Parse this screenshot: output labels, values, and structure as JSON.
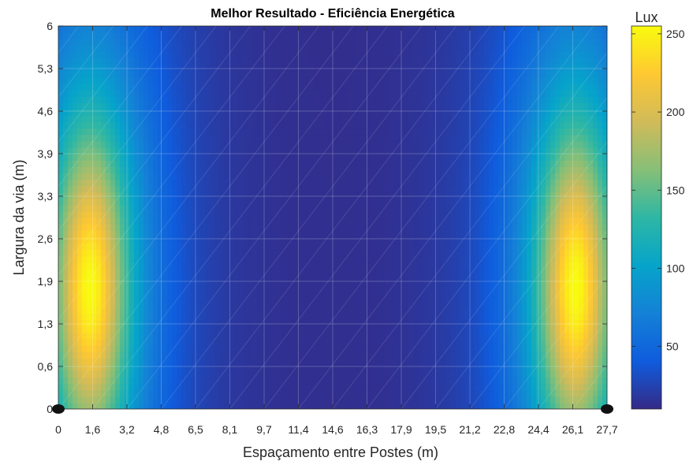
{
  "chart_data": {
    "type": "heatmap",
    "title": "Melhor Resultado - Eficiência Energética",
    "xlabel": "Espaçamento entre Postes (m)",
    "ylabel": "Largura da via (m)",
    "x_ticks": [
      "0",
      "1,6",
      "3,2",
      "4,8",
      "6,5",
      "8,1",
      "9,7",
      "11,4",
      "14,6",
      "16,3",
      "17,9",
      "19,5",
      "21,2",
      "22,8",
      "24,4",
      "26,1",
      "27,7"
    ],
    "y_ticks": [
      "0",
      "0,6",
      "1,3",
      "1,9",
      "2,6",
      "3,3",
      "3,9",
      "4,6",
      "5,3",
      "6"
    ],
    "xlim": [
      0,
      27.7
    ],
    "ylim": [
      0,
      6
    ],
    "colorbar": {
      "title": "Lux",
      "ticks": [
        50,
        100,
        150,
        200,
        250
      ],
      "range": [
        10,
        255
      ]
    },
    "colormap": [
      "#352a87",
      "#0f5cdd",
      "#1481d6",
      "#06a4ca",
      "#2eb7a4",
      "#87bf77",
      "#d1bb59",
      "#fec832",
      "#f9fb0e"
    ],
    "illuminance_peaks": [
      {
        "x": 1.6,
        "y": 1.9,
        "value": 255
      },
      {
        "x": 26.1,
        "y": 1.9,
        "value": 255
      }
    ],
    "poles": [
      {
        "x": 0,
        "y": 0
      },
      {
        "x": 27.7,
        "y": 0
      }
    ],
    "grid": true
  }
}
